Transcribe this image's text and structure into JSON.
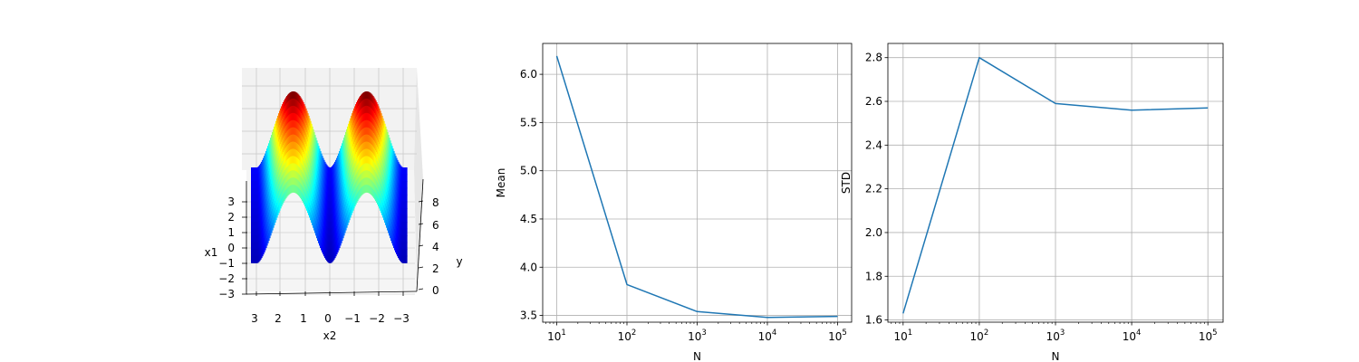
{
  "chart_data": [
    {
      "type": "surface",
      "title": "",
      "xlabel": "x2",
      "ylabel": "x1",
      "zlabel": "y",
      "x_ticks": [
        "3",
        "2",
        "1",
        "0",
        "−1",
        "−2",
        "−3"
      ],
      "y_ticks": [
        "−3",
        "−2",
        "−1",
        "0",
        "1",
        "2",
        "3"
      ],
      "z_ticks": [
        "0",
        "2",
        "4",
        "6",
        "8"
      ],
      "x_range": [
        -3.14,
        3.14
      ],
      "y_range": [
        -3.14,
        3.14
      ],
      "z_range": [
        0,
        9.5
      ],
      "colormap": "jet",
      "grid": true
    },
    {
      "type": "line",
      "title": "",
      "xlabel": "N",
      "ylabel": "Mean",
      "x_scale": "log",
      "x": [
        10,
        100,
        1000,
        10000,
        100000
      ],
      "x_ticks": [
        "10",
        "100",
        "1000",
        "10000",
        "100000"
      ],
      "y_ticks": [
        "3.5",
        "4.0",
        "4.5",
        "5.0",
        "5.5",
        "6.0"
      ],
      "ylim": [
        3.43,
        6.32
      ],
      "grid": true,
      "color": "#1f77b4",
      "series": [
        {
          "values": [
            6.19,
            3.82,
            3.54,
            3.48,
            3.49
          ]
        }
      ]
    },
    {
      "type": "line",
      "title": "",
      "xlabel": "N",
      "ylabel": "STD",
      "x_scale": "log",
      "x": [
        10,
        100,
        1000,
        10000,
        100000
      ],
      "x_ticks": [
        "10",
        "100",
        "1000",
        "10000",
        "100000"
      ],
      "y_ticks": [
        "1.6",
        "1.8",
        "2.0",
        "2.2",
        "2.4",
        "2.6",
        "2.8"
      ],
      "ylim": [
        1.59,
        2.865
      ],
      "grid": true,
      "color": "#1f77b4",
      "series": [
        {
          "values": [
            1.63,
            2.8,
            2.59,
            2.56,
            2.57
          ]
        }
      ]
    }
  ]
}
